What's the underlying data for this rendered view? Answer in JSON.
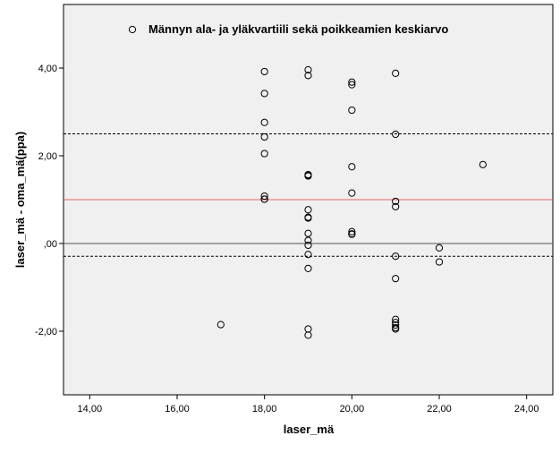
{
  "chart_data": {
    "type": "scatter",
    "title": "",
    "xlabel": "laser_mä",
    "ylabel": "laser_mä - oma_mä(ppa)",
    "xlim": [
      13.4,
      24.6
    ],
    "ylim": [
      -3.45,
      5.45
    ],
    "x_ticks": [
      14,
      16,
      18,
      20,
      22,
      24
    ],
    "x_tick_labels": [
      "14,00",
      "16,00",
      "18,00",
      "20,00",
      "22,00",
      "24,00"
    ],
    "y_ticks": [
      -2,
      0,
      2,
      4
    ],
    "y_tick_labels": [
      "-2,00",
      ",00",
      "2,00",
      "4,00"
    ],
    "grid": false,
    "legend_position": "top",
    "legend": [
      "Männyn ala- ja yläkvartiili sekä poikkeamien keskiarvo"
    ],
    "reference_lines": [
      {
        "y": 2.5,
        "style": "dashed",
        "color": "#000000"
      },
      {
        "y": 1.0,
        "style": "solid",
        "color": "#e06666"
      },
      {
        "y": 0.0,
        "style": "solid",
        "color": "#555555"
      },
      {
        "y": -0.29,
        "style": "dashed",
        "color": "#000000"
      }
    ],
    "series": [
      {
        "marker": "open-circle",
        "x": [
          17,
          18,
          18,
          18,
          18,
          18,
          18,
          18,
          18,
          19,
          19,
          19,
          19,
          19,
          19,
          19,
          19,
          19,
          19,
          19,
          19,
          19,
          19,
          19,
          20,
          20,
          20,
          20,
          20,
          20,
          20,
          20,
          21,
          21,
          21,
          21,
          21,
          21,
          21,
          21,
          21,
          21,
          21,
          22,
          22,
          23
        ],
        "y": [
          -1.85,
          3.92,
          3.42,
          2.76,
          2.43,
          2.05,
          1.08,
          1.01,
          1.01,
          3.96,
          3.83,
          1.57,
          1.54,
          0.77,
          0.6,
          0.58,
          0.23,
          0.07,
          -0.04,
          -0.25,
          -0.57,
          -1.95,
          -2.09,
          1.55,
          3.68,
          3.62,
          3.04,
          1.75,
          1.15,
          0.27,
          0.21,
          0.22,
          3.88,
          2.49,
          0.96,
          0.84,
          -0.29,
          -0.8,
          -1.73,
          -1.8,
          -1.86,
          -1.92,
          -1.95,
          -0.1,
          -0.42,
          1.8
        ]
      }
    ]
  },
  "colors": {
    "plot_background": "#f0f0f0",
    "marker": "#000000",
    "mean_line": "#e06666",
    "zero_line": "#555555"
  }
}
